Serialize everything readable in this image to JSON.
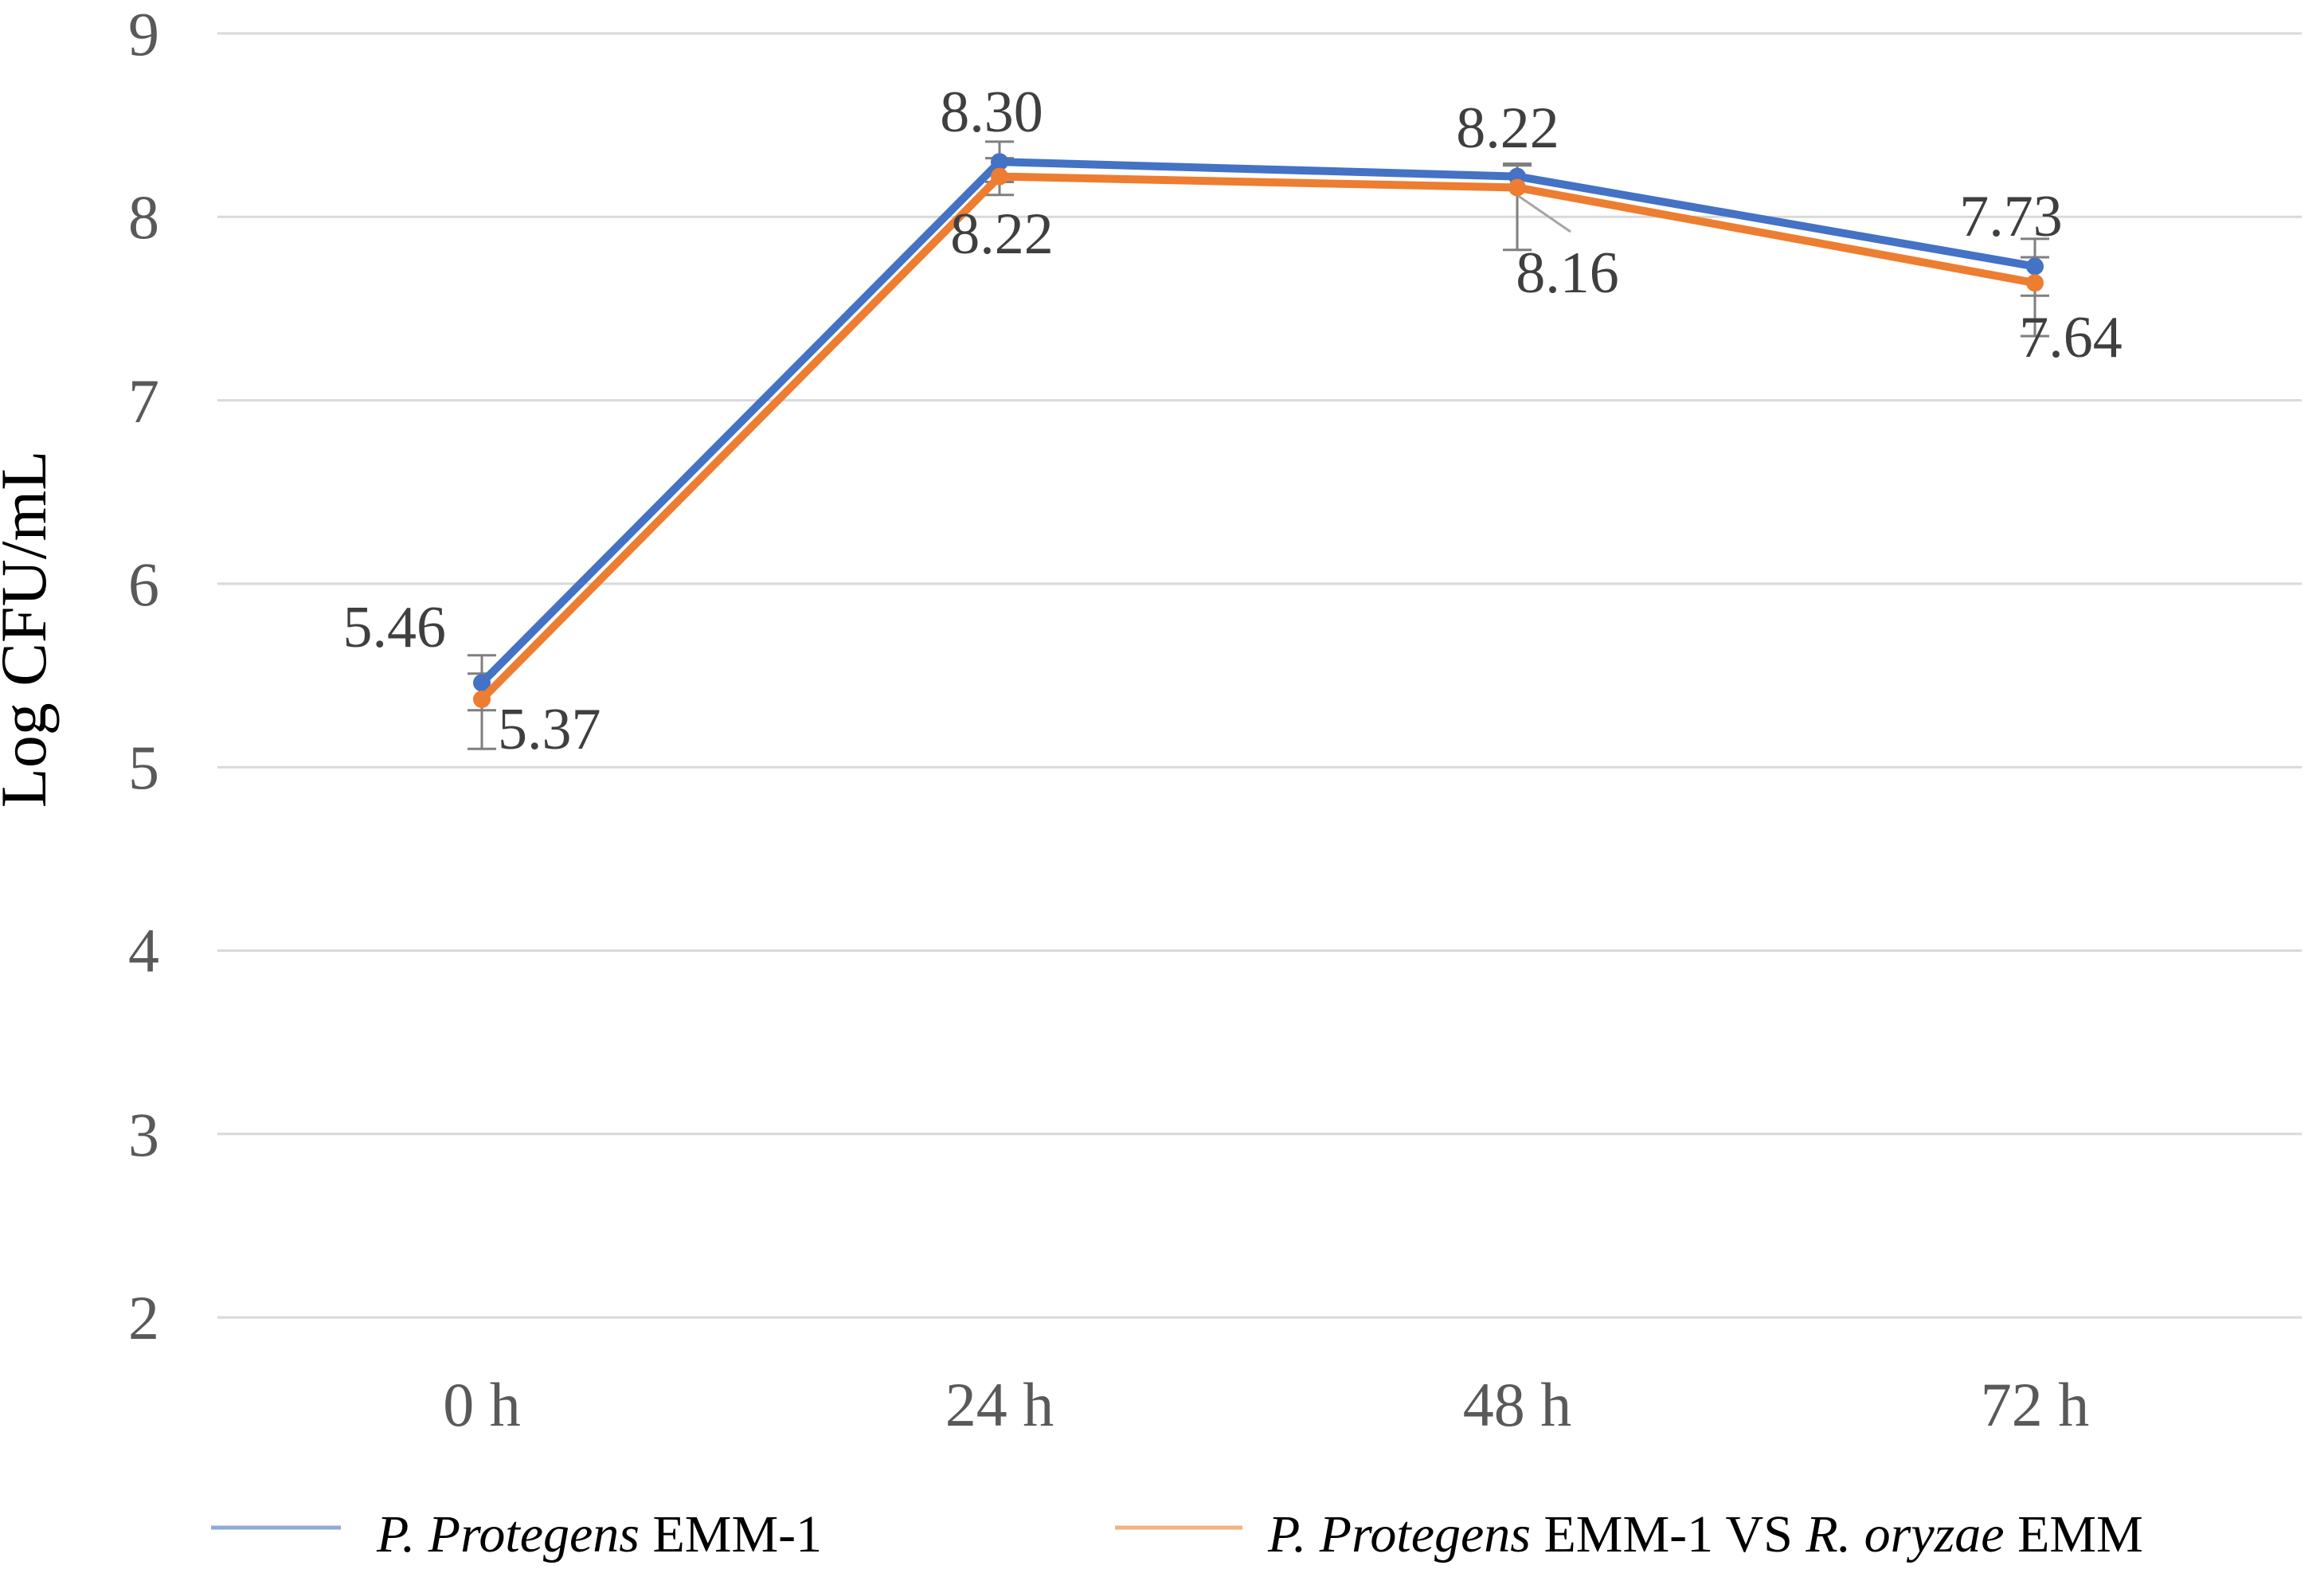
{
  "figure_name": "Bacterial growth curve chart",
  "chart_data": {
    "type": "line",
    "title": "",
    "xlabel": "",
    "ylabel": "Log CFU/mL",
    "categories": [
      "0 h",
      "24 h",
      "48 h",
      "72 h"
    ],
    "y_ticks": [
      9,
      8,
      7,
      6,
      5,
      4,
      3,
      2
    ],
    "y_tick_labels": [
      "9",
      "8",
      "7",
      "6",
      "5",
      "4",
      "3",
      "2"
    ],
    "ylim": [
      2,
      9
    ],
    "grid": "horizontal-only",
    "legend_position": "bottom",
    "series": [
      {
        "name": "P. Protegens EMM-1",
        "name_parts": [
          {
            "text": "P. Protegens",
            "italic": true
          },
          {
            "text": " EMM-1",
            "italic": false
          }
        ],
        "color": "#4472C4",
        "legend_swatch_color": "#8FAADC",
        "values": [
          5.46,
          8.3,
          8.22,
          7.73
        ],
        "labels": [
          "5.46",
          "8.30",
          "8.22",
          "7.73"
        ],
        "error_bars": [
          {
            "plus": 0.15,
            "minus": 0.15
          },
          {
            "plus": 0.11,
            "minus": 0.11
          },
          {
            "plus": 0.07,
            "minus": 0.07
          },
          {
            "plus": 0.15,
            "minus": 0.16
          }
        ]
      },
      {
        "name": "P. Protegens EMM-1 VS R. oryzae EMM",
        "name_parts": [
          {
            "text": "P. Protegens",
            "italic": true
          },
          {
            "text": " EMM-1 VS ",
            "italic": false
          },
          {
            "text": "R. oryzae",
            "italic": true
          },
          {
            "text": " EMM",
            "italic": false
          }
        ],
        "color": "#ED7D31",
        "legend_swatch_color": "#F4B183",
        "values": [
          5.37,
          8.22,
          8.16,
          7.64
        ],
        "labels": [
          "5.37",
          "8.22",
          "8.16",
          "7.64"
        ],
        "error_bars": [
          {
            "plus": 0.14,
            "minus": 0.27
          },
          {
            "plus": 0.1,
            "minus": 0.1
          },
          {
            "plus": 0.12,
            "minus": 0.34
          },
          {
            "plus": 0.14,
            "minus": 0.29
          }
        ]
      }
    ],
    "colors": {
      "grid": "#D9D9D9",
      "tick_text": "#595959",
      "data_label_text": "#3F3F3F",
      "axis_title_text": "#000000",
      "error_bar": "#7F7F7F",
      "leader_line": "#A6A6A6",
      "background": "#FFFFFF"
    }
  }
}
